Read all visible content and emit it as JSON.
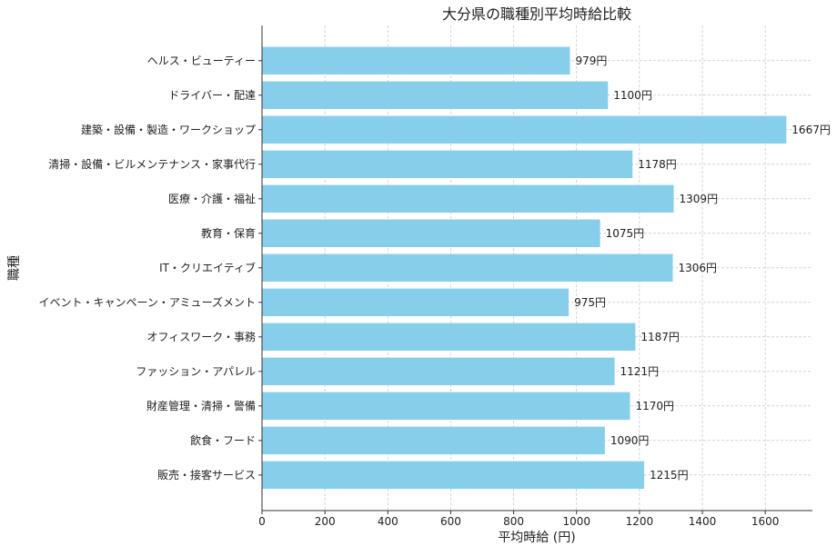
{
  "chart_data": {
    "type": "bar",
    "orientation": "horizontal",
    "title": "大分県の職種別平均時給比較",
    "xlabel": "平均時給 (円)",
    "ylabel": "職種",
    "xlim": [
      0,
      1750
    ],
    "xticks": [
      0,
      200,
      400,
      600,
      800,
      1000,
      1200,
      1400,
      1600
    ],
    "grid": true,
    "bar_color": "#87CEEB",
    "value_suffix": "円",
    "categories": [
      "ヘルス・ビューティー",
      "ドライバー・配達",
      "建築・設備・製造・ワークショップ",
      "清掃・設備・ビルメンテナンス・家事代行",
      "医療・介護・福祉",
      "教育・保育",
      "IT・クリエイティブ",
      "イベント・キャンペーン・アミューズメント",
      "オフィスワーク・事務",
      "ファッション・アパレル",
      "財産管理・清掃・警備",
      "飲食・フード",
      "販売・接客サービス"
    ],
    "values": [
      979,
      1100,
      1667,
      1178,
      1309,
      1075,
      1306,
      975,
      1187,
      1121,
      1170,
      1090,
      1215
    ]
  }
}
